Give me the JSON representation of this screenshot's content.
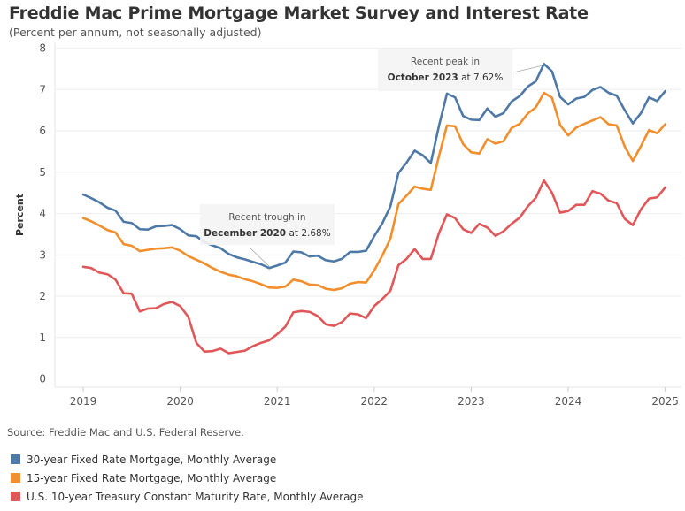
{
  "header": {
    "title": "Freddie Mac Prime Mortgage Market Survey and Interest Rate",
    "subtitle": "(Percent per annum, not seasonally adjusted)"
  },
  "footer": {
    "source": "Source: Freddie Mac and U.S. Federal Reserve."
  },
  "colors": {
    "mortgage30": "#4e79a7",
    "mortgage15": "#f28e2b",
    "treasury10": "#e15759"
  },
  "chart_data": {
    "type": "line",
    "ylabel": "Percent",
    "ylim": [
      0,
      8
    ],
    "yticks": [
      "0",
      "1",
      "2",
      "3",
      "4",
      "5",
      "6",
      "7",
      "8"
    ],
    "xticks": [
      "2019",
      "2020",
      "2021",
      "2022",
      "2023",
      "2024",
      "2025"
    ],
    "x_start": "2019-01",
    "x_end": "2025-01",
    "grid": "horizontal",
    "legend_position": "bottom-left",
    "x": [
      "2019-01",
      "2019-02",
      "2019-03",
      "2019-04",
      "2019-05",
      "2019-06",
      "2019-07",
      "2019-08",
      "2019-09",
      "2019-10",
      "2019-11",
      "2019-12",
      "2020-01",
      "2020-02",
      "2020-03",
      "2020-04",
      "2020-05",
      "2020-06",
      "2020-07",
      "2020-08",
      "2020-09",
      "2020-10",
      "2020-11",
      "2020-12",
      "2021-01",
      "2021-02",
      "2021-03",
      "2021-04",
      "2021-05",
      "2021-06",
      "2021-07",
      "2021-08",
      "2021-09",
      "2021-10",
      "2021-11",
      "2021-12",
      "2022-01",
      "2022-02",
      "2022-03",
      "2022-04",
      "2022-05",
      "2022-06",
      "2022-07",
      "2022-08",
      "2022-09",
      "2022-10",
      "2022-11",
      "2022-12",
      "2023-01",
      "2023-02",
      "2023-03",
      "2023-04",
      "2023-05",
      "2023-06",
      "2023-07",
      "2023-08",
      "2023-09",
      "2023-10",
      "2023-11",
      "2023-12",
      "2024-01",
      "2024-02",
      "2024-03",
      "2024-04",
      "2024-05",
      "2024-06",
      "2024-07",
      "2024-08",
      "2024-09",
      "2024-10",
      "2024-11",
      "2024-12",
      "2025-01"
    ],
    "series": [
      {
        "name": "30-year Fixed Rate Mortgage, Monthly Average",
        "color": "#4e79a7",
        "values": [
          4.46,
          4.37,
          4.27,
          4.14,
          4.07,
          3.8,
          3.77,
          3.62,
          3.61,
          3.69,
          3.7,
          3.72,
          3.62,
          3.47,
          3.45,
          3.31,
          3.23,
          3.16,
          3.02,
          2.94,
          2.89,
          2.83,
          2.77,
          2.68,
          2.74,
          2.81,
          3.08,
          3.06,
          2.96,
          2.98,
          2.87,
          2.84,
          2.9,
          3.07,
          3.07,
          3.1,
          3.45,
          3.76,
          4.17,
          4.98,
          5.23,
          5.52,
          5.41,
          5.22,
          6.11,
          6.9,
          6.81,
          6.36,
          6.27,
          6.26,
          6.54,
          6.34,
          6.43,
          6.71,
          6.84,
          7.07,
          7.2,
          7.62,
          7.44,
          6.82,
          6.64,
          6.78,
          6.82,
          6.99,
          7.06,
          6.92,
          6.85,
          6.5,
          6.18,
          6.43,
          6.81,
          6.72,
          6.96
        ]
      },
      {
        "name": "15-year Fixed Rate Mortgage, Monthly Average",
        "color": "#f28e2b",
        "values": [
          3.89,
          3.81,
          3.71,
          3.6,
          3.54,
          3.26,
          3.22,
          3.09,
          3.12,
          3.15,
          3.16,
          3.18,
          3.1,
          2.97,
          2.88,
          2.79,
          2.68,
          2.59,
          2.52,
          2.48,
          2.41,
          2.36,
          2.29,
          2.21,
          2.2,
          2.23,
          2.4,
          2.36,
          2.28,
          2.27,
          2.18,
          2.15,
          2.19,
          2.3,
          2.34,
          2.33,
          2.62,
          2.98,
          3.39,
          4.23,
          4.43,
          4.65,
          4.6,
          4.57,
          5.38,
          6.13,
          6.11,
          5.68,
          5.48,
          5.45,
          5.8,
          5.69,
          5.75,
          6.07,
          6.17,
          6.42,
          6.57,
          6.92,
          6.8,
          6.14,
          5.89,
          6.08,
          6.17,
          6.25,
          6.33,
          6.16,
          6.13,
          5.62,
          5.27,
          5.63,
          6.02,
          5.94,
          6.16
        ]
      },
      {
        "name": "U.S. 10-year Treasury Constant Maturity Rate, Monthly Average",
        "color": "#e15759",
        "values": [
          2.71,
          2.68,
          2.57,
          2.53,
          2.4,
          2.07,
          2.06,
          1.63,
          1.7,
          1.71,
          1.81,
          1.86,
          1.76,
          1.5,
          0.87,
          0.66,
          0.67,
          0.73,
          0.62,
          0.65,
          0.68,
          0.79,
          0.87,
          0.93,
          1.08,
          1.26,
          1.61,
          1.64,
          1.62,
          1.52,
          1.32,
          1.28,
          1.37,
          1.58,
          1.56,
          1.47,
          1.76,
          1.93,
          2.13,
          2.75,
          2.9,
          3.14,
          2.9,
          2.9,
          3.52,
          3.98,
          3.89,
          3.62,
          3.53,
          3.75,
          3.66,
          3.46,
          3.57,
          3.75,
          3.9,
          4.17,
          4.38,
          4.8,
          4.5,
          4.02,
          4.06,
          4.21,
          4.21,
          4.54,
          4.48,
          4.31,
          4.25,
          3.87,
          3.72,
          4.1,
          4.36,
          4.39,
          4.63
        ]
      }
    ],
    "annotations": [
      {
        "date": "2020-12",
        "value": 2.68,
        "line1": "Recent trough in",
        "bold": "December 2020",
        "rest": " at 2.68%"
      },
      {
        "date": "2023-10",
        "value": 7.62,
        "line1": "Recent peak in",
        "bold": "October 2023",
        "rest": " at 7.62%"
      }
    ]
  }
}
